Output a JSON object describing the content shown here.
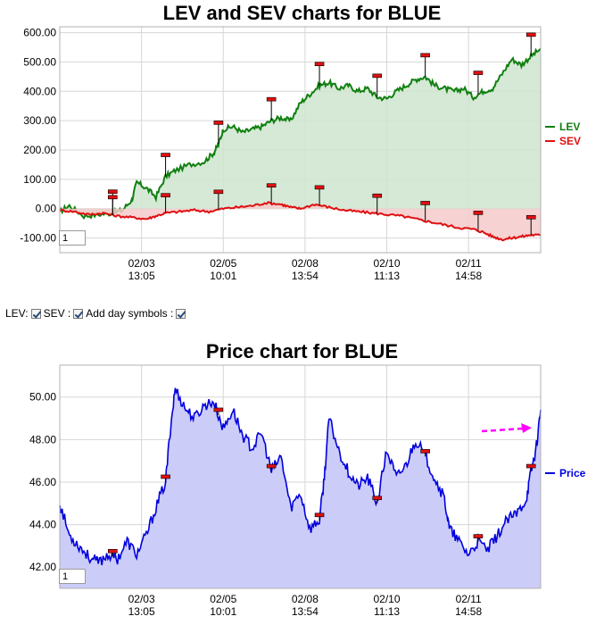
{
  "controls": {
    "lev_label": "LEV:",
    "sev_label": "SEV :",
    "day_symbols_label": "Add day symbols :",
    "lev_checked": true,
    "sev_checked": true,
    "day_symbols_checked": true
  },
  "chart_data": [
    {
      "type": "area",
      "title": "LEV and SEV charts for BLUE",
      "ylim": [
        -150,
        620
      ],
      "yticks": [
        "600.00",
        "500.00",
        "400.00",
        "300.00",
        "200.00",
        "100.00",
        "0.00",
        "-100.00"
      ],
      "ytick_values": [
        600,
        500,
        400,
        300,
        200,
        100,
        0,
        -100
      ],
      "xticks": [
        {
          "date": "02/03",
          "time": "13:05",
          "t": 0.17
        },
        {
          "date": "02/05",
          "time": "10:01",
          "t": 0.34
        },
        {
          "date": "02/08",
          "time": "13:54",
          "t": 0.51
        },
        {
          "date": "02/10",
          "time": "11:13",
          "t": 0.68
        },
        {
          "date": "02/11",
          "time": "14:58",
          "t": 0.85
        }
      ],
      "zoom_value": "1",
      "legend": {
        "placement": "right"
      },
      "series": [
        {
          "name": "LEV",
          "color": "#108010",
          "fill": "#cfe5cf",
          "points": [
            [
              0,
              -10
            ],
            [
              0.02,
              10
            ],
            [
              0.05,
              -25
            ],
            [
              0.08,
              -20
            ],
            [
              0.11,
              -15
            ],
            [
              0.13,
              -5
            ],
            [
              0.15,
              30
            ],
            [
              0.16,
              90
            ],
            [
              0.18,
              70
            ],
            [
              0.2,
              40
            ],
            [
              0.22,
              110
            ],
            [
              0.24,
              130
            ],
            [
              0.27,
              150
            ],
            [
              0.3,
              160
            ],
            [
              0.32,
              190
            ],
            [
              0.33,
              220
            ],
            [
              0.34,
              270
            ],
            [
              0.36,
              280
            ],
            [
              0.38,
              260
            ],
            [
              0.4,
              270
            ],
            [
              0.42,
              280
            ],
            [
              0.44,
              300
            ],
            [
              0.46,
              310
            ],
            [
              0.48,
              300
            ],
            [
              0.5,
              360
            ],
            [
              0.52,
              390
            ],
            [
              0.54,
              420
            ],
            [
              0.56,
              430
            ],
            [
              0.58,
              410
            ],
            [
              0.6,
              420
            ],
            [
              0.62,
              400
            ],
            [
              0.64,
              410
            ],
            [
              0.66,
              380
            ],
            [
              0.68,
              375
            ],
            [
              0.7,
              400
            ],
            [
              0.72,
              420
            ],
            [
              0.74,
              440
            ],
            [
              0.76,
              450
            ],
            [
              0.78,
              420
            ],
            [
              0.8,
              410
            ],
            [
              0.82,
              400
            ],
            [
              0.84,
              410
            ],
            [
              0.86,
              380
            ],
            [
              0.88,
              400
            ],
            [
              0.9,
              410
            ],
            [
              0.92,
              460
            ],
            [
              0.94,
              510
            ],
            [
              0.96,
              490
            ],
            [
              0.98,
              520
            ],
            [
              1.0,
              545
            ]
          ]
        },
        {
          "name": "SEV",
          "color": "#e01010",
          "fill": "#f4caca",
          "points": [
            [
              0,
              -5
            ],
            [
              0.03,
              -10
            ],
            [
              0.06,
              -20
            ],
            [
              0.09,
              -15
            ],
            [
              0.12,
              -25
            ],
            [
              0.15,
              -30
            ],
            [
              0.18,
              -35
            ],
            [
              0.2,
              -25
            ],
            [
              0.22,
              -15
            ],
            [
              0.25,
              -10
            ],
            [
              0.28,
              -5
            ],
            [
              0.31,
              -10
            ],
            [
              0.34,
              0
            ],
            [
              0.37,
              5
            ],
            [
              0.4,
              10
            ],
            [
              0.43,
              20
            ],
            [
              0.46,
              15
            ],
            [
              0.48,
              5
            ],
            [
              0.5,
              0
            ],
            [
              0.53,
              15
            ],
            [
              0.56,
              5
            ],
            [
              0.59,
              -5
            ],
            [
              0.62,
              -10
            ],
            [
              0.65,
              -15
            ],
            [
              0.68,
              -20
            ],
            [
              0.71,
              -25
            ],
            [
              0.74,
              -35
            ],
            [
              0.77,
              -45
            ],
            [
              0.8,
              -55
            ],
            [
              0.83,
              -65
            ],
            [
              0.86,
              -70
            ],
            [
              0.88,
              -80
            ],
            [
              0.9,
              -95
            ],
            [
              0.92,
              -105
            ],
            [
              0.94,
              -100
            ],
            [
              0.96,
              -95
            ],
            [
              0.98,
              -90
            ],
            [
              1.0,
              -90
            ]
          ]
        }
      ],
      "day_markers_lev": [
        0.11,
        0.22,
        0.33,
        0.44,
        0.54,
        0.66,
        0.76,
        0.87,
        0.98
      ],
      "day_markers_sev": [
        0.11,
        0.22,
        0.33,
        0.44,
        0.54,
        0.66,
        0.76,
        0.87,
        0.98
      ]
    },
    {
      "type": "area",
      "title": "Price chart for BLUE",
      "ylim": [
        41,
        51.5
      ],
      "yticks": [
        "50.00",
        "48.00",
        "46.00",
        "44.00",
        "42.00"
      ],
      "ytick_values": [
        50,
        48,
        46,
        44,
        42
      ],
      "xticks": [
        {
          "date": "02/03",
          "time": "13:05",
          "t": 0.17
        },
        {
          "date": "02/05",
          "time": "10:01",
          "t": 0.34
        },
        {
          "date": "02/08",
          "time": "13:54",
          "t": 0.51
        },
        {
          "date": "02/10",
          "time": "11:13",
          "t": 0.68
        },
        {
          "date": "02/11",
          "time": "14:58",
          "t": 0.85
        }
      ],
      "zoom_value": "1",
      "legend": {
        "placement": "right"
      },
      "series": [
        {
          "name": "Price",
          "color": "#0000dd",
          "fill": "#ccccf8",
          "points": [
            [
              0,
              45
            ],
            [
              0.02,
              43.5
            ],
            [
              0.04,
              43
            ],
            [
              0.06,
              42.5
            ],
            [
              0.08,
              42.2
            ],
            [
              0.1,
              42.6
            ],
            [
              0.12,
              42.4
            ],
            [
              0.14,
              43.2
            ],
            [
              0.16,
              42.6
            ],
            [
              0.18,
              43.5
            ],
            [
              0.2,
              44.8
            ],
            [
              0.22,
              46
            ],
            [
              0.23,
              48.5
            ],
            [
              0.24,
              50.4
            ],
            [
              0.26,
              49.5
            ],
            [
              0.28,
              49
            ],
            [
              0.3,
              49.6
            ],
            [
              0.32,
              49.8
            ],
            [
              0.34,
              48.5
            ],
            [
              0.36,
              49.4
            ],
            [
              0.38,
              48.2
            ],
            [
              0.4,
              47.6
            ],
            [
              0.42,
              48.3
            ],
            [
              0.44,
              46.5
            ],
            [
              0.46,
              47.2
            ],
            [
              0.48,
              44.8
            ],
            [
              0.5,
              45.5
            ],
            [
              0.52,
              43.8
            ],
            [
              0.54,
              44.2
            ],
            [
              0.55,
              46.2
            ],
            [
              0.56,
              49
            ],
            [
              0.58,
              47.5
            ],
            [
              0.6,
              46.5
            ],
            [
              0.62,
              45.8
            ],
            [
              0.64,
              46.2
            ],
            [
              0.66,
              45
            ],
            [
              0.68,
              47.5
            ],
            [
              0.7,
              46.2
            ],
            [
              0.72,
              46.8
            ],
            [
              0.74,
              48
            ],
            [
              0.76,
              47.2
            ],
            [
              0.78,
              46.2
            ],
            [
              0.8,
              45.2
            ],
            [
              0.81,
              43.8
            ],
            [
              0.83,
              43.2
            ],
            [
              0.85,
              42.6
            ],
            [
              0.87,
              43.2
            ],
            [
              0.89,
              42.8
            ],
            [
              0.91,
              43.5
            ],
            [
              0.93,
              44.2
            ],
            [
              0.95,
              44.5
            ],
            [
              0.97,
              45.2
            ],
            [
              0.98,
              46.5
            ],
            [
              0.99,
              47.5
            ],
            [
              1.0,
              49.4
            ]
          ]
        }
      ],
      "day_markers": [
        0.11,
        0.22,
        0.33,
        0.44,
        0.54,
        0.66,
        0.76,
        0.87,
        0.98
      ]
    }
  ]
}
